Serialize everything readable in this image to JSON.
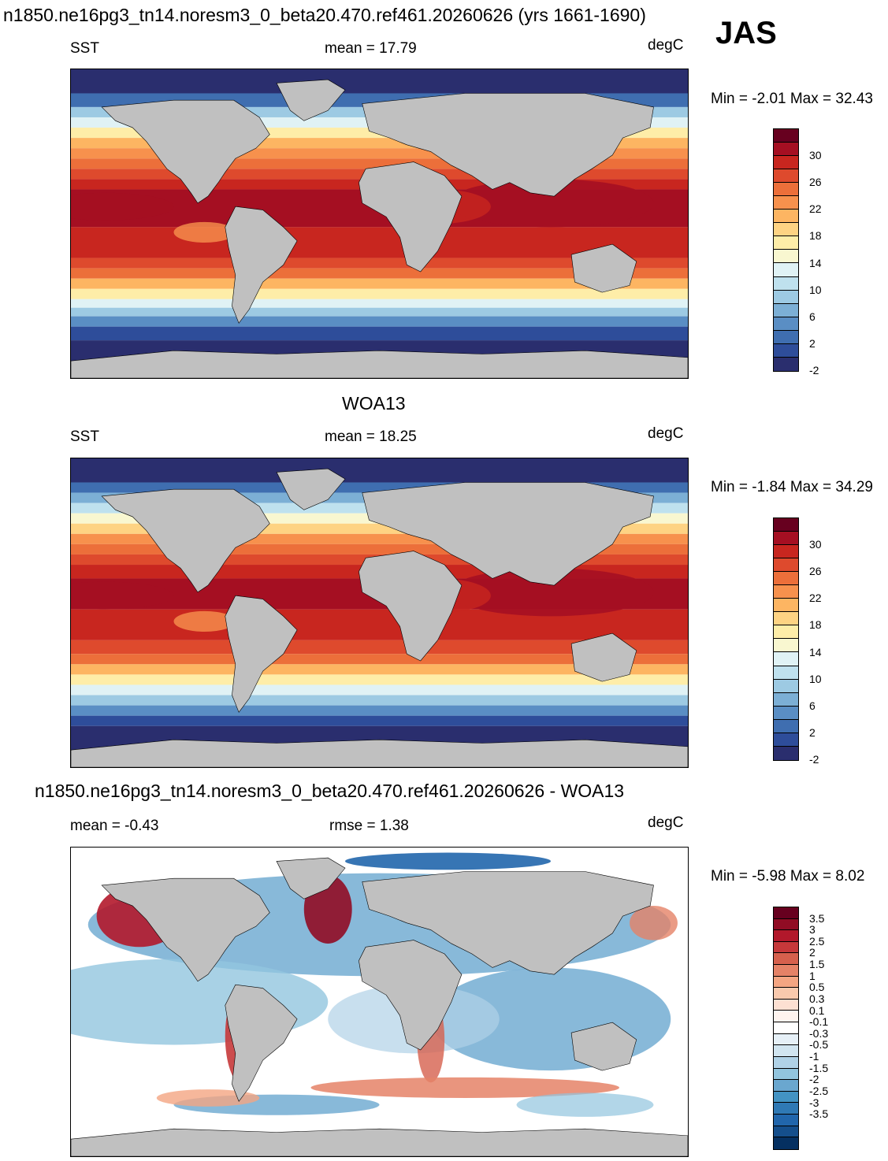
{
  "header": {
    "title": "n1850.ne16pg3_tn14.noresm3_0_beta20.470.ref461.20260626 (yrs 1661-1690)",
    "season": "JAS"
  },
  "panels": [
    {
      "variable": "SST",
      "stat": "mean =  17.79",
      "units": "degC",
      "minmax": "Min =  -2.01 Max =  32.43"
    },
    {
      "heading": "WOA13",
      "variable": "SST",
      "stat": "mean =  18.25",
      "units": "degC",
      "minmax": "Min =  -1.84 Max =  34.29"
    },
    {
      "heading": "n1850.ne16pg3_tn14.noresm3_0_beta20.470.ref461.20260626 - WOA13",
      "stat1": "mean =  -0.43",
      "stat2": "rmse =   1.38",
      "units": "degC",
      "minmax": "Min =  -5.98 Max =   8.02"
    }
  ],
  "colorbars": {
    "sst": {
      "labels": [
        "30",
        "26",
        "22",
        "18",
        "14",
        "10",
        "6",
        "2",
        "-2"
      ],
      "colors": [
        "#67001f",
        "#a50f22",
        "#c8261f",
        "#de4a2d",
        "#ec6f3a",
        "#f7914d",
        "#fdb562",
        "#fed383",
        "#feeda8",
        "#f9f7d0",
        "#e0f2f5",
        "#bfe1ee",
        "#9dcae3",
        "#7cafd5",
        "#5a8ec4",
        "#3f6eb0",
        "#2e4d9a",
        "#2a2e6e"
      ]
    },
    "diff": {
      "labels": [
        "3.5",
        "3",
        "2.5",
        "2",
        "1.5",
        "1",
        "0.5",
        "0.3",
        "0.1",
        "-0.1",
        "-0.3",
        "-0.5",
        "-1",
        "-1.5",
        "-2",
        "-2.5",
        "-3",
        "-3.5"
      ],
      "colors": [
        "#67001f",
        "#910c24",
        "#b2182b",
        "#c6383a",
        "#d6604d",
        "#e58267",
        "#f4a582",
        "#f9c9ad",
        "#fde0d2",
        "#fff4ef",
        "#ffffff",
        "#e6f0f7",
        "#d1e5f0",
        "#b0d2e7",
        "#92c5de",
        "#6aa7cf",
        "#4393c3",
        "#2f79b5",
        "#2166ac",
        "#154f8c",
        "#053061"
      ]
    }
  },
  "colors": {
    "land": "#c0c0c0",
    "coast": "#000000"
  }
}
